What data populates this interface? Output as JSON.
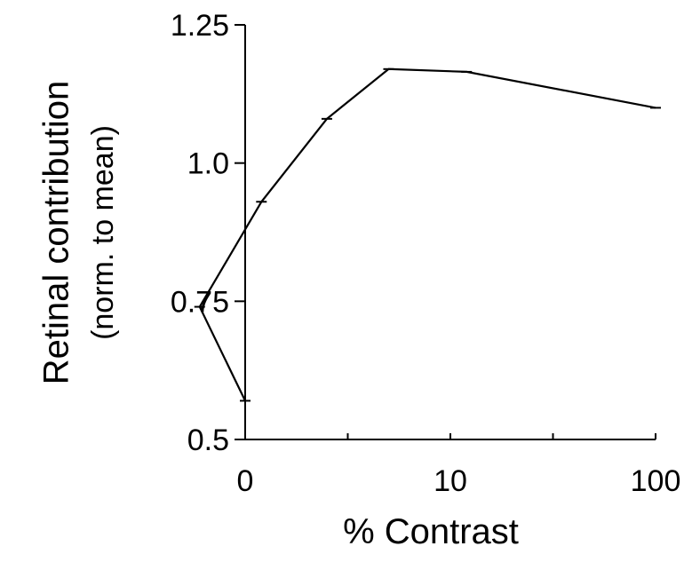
{
  "chart_data": {
    "type": "line",
    "xlabel": "% Contrast",
    "ylabel": "Retinal contribution",
    "ylabel_sub": "(norm. to mean)",
    "x_scale": "log",
    "x": [
      0,
      0.6,
      1.2,
      2.5,
      5,
      12,
      100
    ],
    "y": [
      0.57,
      0.74,
      0.93,
      1.08,
      1.17,
      1.165,
      1.1
    ],
    "ylim": [
      0.5,
      1.25
    ],
    "yticks": [
      0.5,
      0.75,
      1.0,
      1.25
    ],
    "ytick_labels": [
      "0.5",
      "0.75",
      "1.0",
      "1.25"
    ],
    "xtick_labels": [
      "0",
      "10",
      "100"
    ],
    "grid": false,
    "legend": "none",
    "line_color": "#000000"
  }
}
